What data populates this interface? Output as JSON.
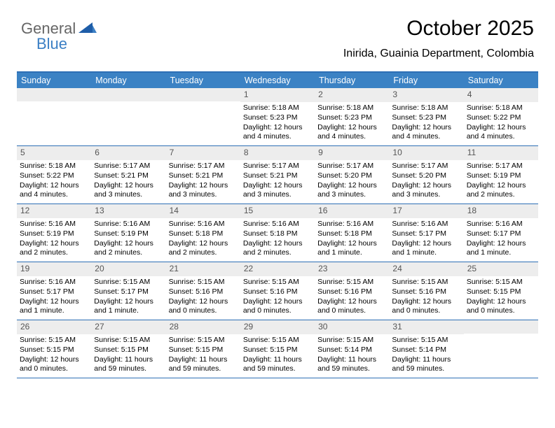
{
  "logo": {
    "text1": "General",
    "text2": "Blue"
  },
  "title": "October 2025",
  "subtitle": "Inirida, Guainia Department, Colombia",
  "colors": {
    "header_bg": "#3b82c4",
    "header_text": "#ffffff",
    "border": "#2d6fb5",
    "daynum_bg": "#ededed",
    "daynum_text": "#555555",
    "body_text": "#000000",
    "logo_gray": "#666666",
    "logo_blue": "#3b7fc4"
  },
  "headers": [
    "Sunday",
    "Monday",
    "Tuesday",
    "Wednesday",
    "Thursday",
    "Friday",
    "Saturday"
  ],
  "weeks": [
    [
      {
        "n": "",
        "l1": "",
        "l2": "",
        "l3": ""
      },
      {
        "n": "",
        "l1": "",
        "l2": "",
        "l3": ""
      },
      {
        "n": "",
        "l1": "",
        "l2": "",
        "l3": ""
      },
      {
        "n": "1",
        "l1": "Sunrise: 5:18 AM",
        "l2": "Sunset: 5:23 PM",
        "l3": "Daylight: 12 hours and 4 minutes."
      },
      {
        "n": "2",
        "l1": "Sunrise: 5:18 AM",
        "l2": "Sunset: 5:23 PM",
        "l3": "Daylight: 12 hours and 4 minutes."
      },
      {
        "n": "3",
        "l1": "Sunrise: 5:18 AM",
        "l2": "Sunset: 5:23 PM",
        "l3": "Daylight: 12 hours and 4 minutes."
      },
      {
        "n": "4",
        "l1": "Sunrise: 5:18 AM",
        "l2": "Sunset: 5:22 PM",
        "l3": "Daylight: 12 hours and 4 minutes."
      }
    ],
    [
      {
        "n": "5",
        "l1": "Sunrise: 5:18 AM",
        "l2": "Sunset: 5:22 PM",
        "l3": "Daylight: 12 hours and 4 minutes."
      },
      {
        "n": "6",
        "l1": "Sunrise: 5:17 AM",
        "l2": "Sunset: 5:21 PM",
        "l3": "Daylight: 12 hours and 3 minutes."
      },
      {
        "n": "7",
        "l1": "Sunrise: 5:17 AM",
        "l2": "Sunset: 5:21 PM",
        "l3": "Daylight: 12 hours and 3 minutes."
      },
      {
        "n": "8",
        "l1": "Sunrise: 5:17 AM",
        "l2": "Sunset: 5:21 PM",
        "l3": "Daylight: 12 hours and 3 minutes."
      },
      {
        "n": "9",
        "l1": "Sunrise: 5:17 AM",
        "l2": "Sunset: 5:20 PM",
        "l3": "Daylight: 12 hours and 3 minutes."
      },
      {
        "n": "10",
        "l1": "Sunrise: 5:17 AM",
        "l2": "Sunset: 5:20 PM",
        "l3": "Daylight: 12 hours and 3 minutes."
      },
      {
        "n": "11",
        "l1": "Sunrise: 5:17 AM",
        "l2": "Sunset: 5:19 PM",
        "l3": "Daylight: 12 hours and 2 minutes."
      }
    ],
    [
      {
        "n": "12",
        "l1": "Sunrise: 5:16 AM",
        "l2": "Sunset: 5:19 PM",
        "l3": "Daylight: 12 hours and 2 minutes."
      },
      {
        "n": "13",
        "l1": "Sunrise: 5:16 AM",
        "l2": "Sunset: 5:19 PM",
        "l3": "Daylight: 12 hours and 2 minutes."
      },
      {
        "n": "14",
        "l1": "Sunrise: 5:16 AM",
        "l2": "Sunset: 5:18 PM",
        "l3": "Daylight: 12 hours and 2 minutes."
      },
      {
        "n": "15",
        "l1": "Sunrise: 5:16 AM",
        "l2": "Sunset: 5:18 PM",
        "l3": "Daylight: 12 hours and 2 minutes."
      },
      {
        "n": "16",
        "l1": "Sunrise: 5:16 AM",
        "l2": "Sunset: 5:18 PM",
        "l3": "Daylight: 12 hours and 1 minute."
      },
      {
        "n": "17",
        "l1": "Sunrise: 5:16 AM",
        "l2": "Sunset: 5:17 PM",
        "l3": "Daylight: 12 hours and 1 minute."
      },
      {
        "n": "18",
        "l1": "Sunrise: 5:16 AM",
        "l2": "Sunset: 5:17 PM",
        "l3": "Daylight: 12 hours and 1 minute."
      }
    ],
    [
      {
        "n": "19",
        "l1": "Sunrise: 5:16 AM",
        "l2": "Sunset: 5:17 PM",
        "l3": "Daylight: 12 hours and 1 minute."
      },
      {
        "n": "20",
        "l1": "Sunrise: 5:15 AM",
        "l2": "Sunset: 5:17 PM",
        "l3": "Daylight: 12 hours and 1 minute."
      },
      {
        "n": "21",
        "l1": "Sunrise: 5:15 AM",
        "l2": "Sunset: 5:16 PM",
        "l3": "Daylight: 12 hours and 0 minutes."
      },
      {
        "n": "22",
        "l1": "Sunrise: 5:15 AM",
        "l2": "Sunset: 5:16 PM",
        "l3": "Daylight: 12 hours and 0 minutes."
      },
      {
        "n": "23",
        "l1": "Sunrise: 5:15 AM",
        "l2": "Sunset: 5:16 PM",
        "l3": "Daylight: 12 hours and 0 minutes."
      },
      {
        "n": "24",
        "l1": "Sunrise: 5:15 AM",
        "l2": "Sunset: 5:16 PM",
        "l3": "Daylight: 12 hours and 0 minutes."
      },
      {
        "n": "25",
        "l1": "Sunrise: 5:15 AM",
        "l2": "Sunset: 5:15 PM",
        "l3": "Daylight: 12 hours and 0 minutes."
      }
    ],
    [
      {
        "n": "26",
        "l1": "Sunrise: 5:15 AM",
        "l2": "Sunset: 5:15 PM",
        "l3": "Daylight: 12 hours and 0 minutes."
      },
      {
        "n": "27",
        "l1": "Sunrise: 5:15 AM",
        "l2": "Sunset: 5:15 PM",
        "l3": "Daylight: 11 hours and 59 minutes."
      },
      {
        "n": "28",
        "l1": "Sunrise: 5:15 AM",
        "l2": "Sunset: 5:15 PM",
        "l3": "Daylight: 11 hours and 59 minutes."
      },
      {
        "n": "29",
        "l1": "Sunrise: 5:15 AM",
        "l2": "Sunset: 5:15 PM",
        "l3": "Daylight: 11 hours and 59 minutes."
      },
      {
        "n": "30",
        "l1": "Sunrise: 5:15 AM",
        "l2": "Sunset: 5:14 PM",
        "l3": "Daylight: 11 hours and 59 minutes."
      },
      {
        "n": "31",
        "l1": "Sunrise: 5:15 AM",
        "l2": "Sunset: 5:14 PM",
        "l3": "Daylight: 11 hours and 59 minutes."
      },
      {
        "n": "",
        "l1": "",
        "l2": "",
        "l3": ""
      }
    ]
  ]
}
